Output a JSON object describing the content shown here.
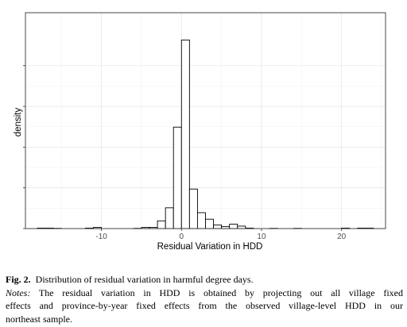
{
  "chart_data": {
    "type": "bar",
    "xlabel": "Residual Variation in HDD",
    "ylabel": "density",
    "xlim": [
      -19.5,
      25.5
    ],
    "x_ticks": [
      -10,
      0,
      10,
      20
    ],
    "x_tick_labels": [
      "-10",
      "0",
      "10",
      "20"
    ],
    "ylim": [
      0,
      0.265
    ],
    "y_ticks": [
      0,
      0.05,
      0.1,
      0.15,
      0.2
    ],
    "y_tick_labels": [
      "",
      "",
      "",
      "",
      ""
    ],
    "bin_width": 1,
    "bin_starts": [
      -18,
      -17,
      -16,
      -15,
      -14,
      -13,
      -12,
      -11,
      -10,
      -9,
      -8,
      -7,
      -6,
      -5,
      -4,
      -3,
      -2,
      -1,
      0,
      1,
      2,
      3,
      4,
      5,
      6,
      7,
      8,
      9,
      10,
      11,
      12,
      13,
      14,
      15,
      16,
      17,
      18,
      19,
      20,
      21,
      22,
      23
    ],
    "values": [
      0.0006,
      0.0006,
      0.0003,
      0,
      0,
      0,
      0.0006,
      0.0015,
      0,
      0,
      0,
      0,
      0.0003,
      0.0015,
      0.0015,
      0.0095,
      0.0255,
      0.1245,
      0.2315,
      0.0485,
      0.0195,
      0.0115,
      0.0045,
      0.0025,
      0.0055,
      0.003,
      0.0006,
      0,
      0,
      0.0003,
      0,
      0,
      0.0003,
      0,
      0,
      0,
      0,
      0,
      0.0006,
      0,
      0.0006,
      0.0006
    ],
    "grid": true
  },
  "caption": {
    "fig_label": "Fig. 2.",
    "fig_text": "Distribution of residual variation in harmful degree days.",
    "notes_label": "Notes:",
    "notes_line1": "The residual variation in HDD is obtained by projecting out all village fixed",
    "notes_line2": "effects and province-by-year fixed effects from the observed village-level HDD in our",
    "notes_line3": "northeast sample."
  }
}
